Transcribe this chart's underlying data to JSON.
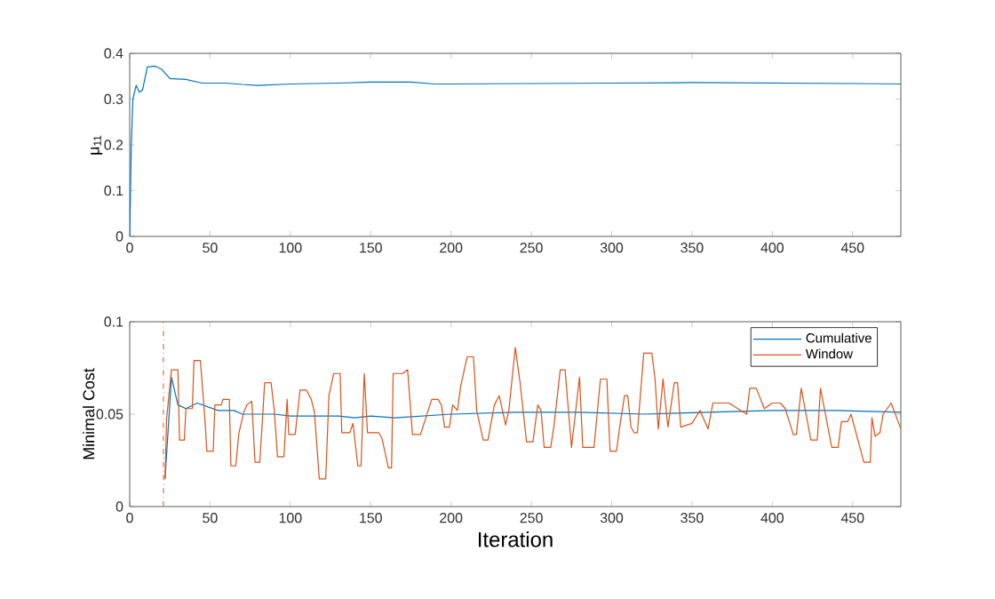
{
  "chart_data": [
    {
      "type": "line",
      "ylabel": "μ$_{11}$",
      "xlim": [
        0,
        480
      ],
      "xticks": [
        0,
        50,
        100,
        150,
        200,
        250,
        300,
        350,
        400,
        450
      ],
      "ylim": [
        0,
        0.4
      ],
      "yticks": [
        0,
        0.1,
        0.2,
        0.3,
        0.4
      ],
      "series": [
        {
          "color": "#0072bd",
          "x": [
            0,
            1,
            2,
            4,
            6,
            8,
            11,
            16,
            20,
            25,
            35,
            45,
            60,
            70,
            80,
            100,
            130,
            150,
            175,
            190,
            200,
            250,
            300,
            350,
            400,
            450,
            480
          ],
          "values": [
            0.0,
            0.2,
            0.3,
            0.33,
            0.315,
            0.32,
            0.37,
            0.372,
            0.365,
            0.345,
            0.343,
            0.335,
            0.335,
            0.332,
            0.33,
            0.333,
            0.335,
            0.337,
            0.337,
            0.333,
            0.333,
            0.334,
            0.335,
            0.336,
            0.335,
            0.334,
            0.333
          ]
        }
      ]
    },
    {
      "type": "line",
      "xlabel": "Iteration",
      "ylabel": "Minimal Cost",
      "xlim": [
        0,
        480
      ],
      "xticks": [
        0,
        50,
        100,
        150,
        200,
        250,
        300,
        350,
        400,
        450
      ],
      "ylim": [
        0,
        0.1
      ],
      "yticks": [
        0,
        0.05,
        0.1
      ],
      "legend": "top right",
      "ref_lines": [
        {
          "axis": "x",
          "value": 21,
          "color": "#d95319",
          "line_style": "dashdot"
        }
      ],
      "series": [
        {
          "name": "Cumulative",
          "color": "#0072bd",
          "x": [
            22,
            26,
            30,
            35,
            42,
            55,
            65,
            70,
            90,
            100,
            130,
            140,
            150,
            165,
            200,
            240,
            280,
            320,
            360,
            400,
            440,
            480
          ],
          "values": [
            0.015,
            0.07,
            0.055,
            0.053,
            0.056,
            0.052,
            0.052,
            0.05,
            0.05,
            0.049,
            0.049,
            0.048,
            0.049,
            0.048,
            0.05,
            0.051,
            0.051,
            0.05,
            0.051,
            0.052,
            0.052,
            0.051
          ]
        },
        {
          "name": "Window",
          "color": "#d95319",
          "x": [
            22,
            23,
            26,
            30,
            31,
            34,
            35,
            39,
            40,
            44,
            47,
            48,
            52,
            53,
            57,
            58,
            62,
            63,
            66,
            68,
            71,
            73,
            76,
            78,
            81,
            84,
            88,
            90,
            92,
            96,
            98,
            99,
            103,
            106,
            110,
            113,
            115,
            118,
            122,
            124,
            127,
            131,
            132,
            137,
            139,
            142,
            144,
            146,
            148,
            155,
            157,
            161,
            163,
            164,
            170,
            173,
            176,
            181,
            188,
            192,
            194,
            196,
            199,
            201,
            204,
            206,
            210,
            214,
            216,
            218,
            220,
            223,
            227,
            230,
            234,
            236,
            240,
            243,
            247,
            251,
            254,
            256,
            258,
            262,
            264,
            268,
            271,
            275,
            280,
            282,
            289,
            293,
            297,
            299,
            303,
            305,
            308,
            310,
            312,
            314,
            316,
            320,
            325,
            327,
            329,
            332,
            335,
            339,
            341,
            343,
            350,
            355,
            360,
            363,
            373,
            384,
            386,
            390,
            395,
            400,
            405,
            408,
            412,
            413,
            415,
            418,
            424,
            428,
            430,
            437,
            441,
            443,
            447,
            449,
            457,
            461,
            462,
            464,
            467,
            469,
            474,
            480
          ],
          "values": [
            0.015,
            0.048,
            0.074,
            0.074,
            0.036,
            0.036,
            0.053,
            0.053,
            0.079,
            0.079,
            0.045,
            0.03,
            0.03,
            0.055,
            0.055,
            0.058,
            0.058,
            0.022,
            0.022,
            0.04,
            0.051,
            0.055,
            0.057,
            0.024,
            0.024,
            0.067,
            0.067,
            0.052,
            0.027,
            0.027,
            0.058,
            0.039,
            0.039,
            0.063,
            0.063,
            0.058,
            0.051,
            0.015,
            0.015,
            0.06,
            0.072,
            0.072,
            0.04,
            0.04,
            0.045,
            0.022,
            0.022,
            0.072,
            0.04,
            0.04,
            0.037,
            0.021,
            0.021,
            0.072,
            0.072,
            0.074,
            0.039,
            0.039,
            0.058,
            0.058,
            0.055,
            0.043,
            0.043,
            0.055,
            0.052,
            0.065,
            0.081,
            0.081,
            0.052,
            0.044,
            0.036,
            0.036,
            0.055,
            0.06,
            0.044,
            0.052,
            0.086,
            0.067,
            0.035,
            0.035,
            0.055,
            0.052,
            0.032,
            0.032,
            0.043,
            0.074,
            0.074,
            0.032,
            0.07,
            0.032,
            0.032,
            0.069,
            0.069,
            0.03,
            0.03,
            0.043,
            0.06,
            0.06,
            0.043,
            0.04,
            0.04,
            0.083,
            0.083,
            0.069,
            0.042,
            0.069,
            0.043,
            0.067,
            0.067,
            0.043,
            0.045,
            0.052,
            0.042,
            0.056,
            0.056,
            0.05,
            0.064,
            0.064,
            0.053,
            0.056,
            0.056,
            0.053,
            0.042,
            0.039,
            0.039,
            0.064,
            0.036,
            0.036,
            0.064,
            0.032,
            0.032,
            0.046,
            0.046,
            0.05,
            0.024,
            0.024,
            0.048,
            0.038,
            0.04,
            0.05,
            0.056,
            0.042
          ]
        }
      ]
    }
  ]
}
